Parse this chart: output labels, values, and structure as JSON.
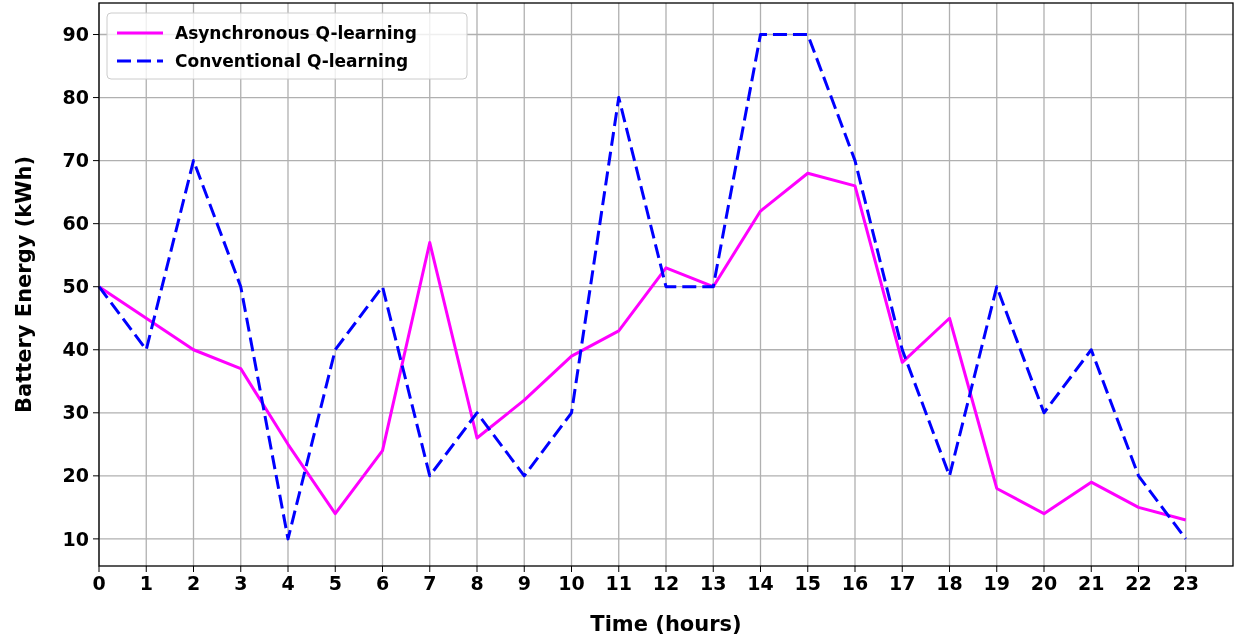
{
  "chart_data": {
    "type": "line",
    "xlabel": "Time (hours)",
    "ylabel": "Battery Energy (kWh)",
    "x": [
      0,
      1,
      2,
      3,
      4,
      5,
      6,
      7,
      8,
      9,
      10,
      11,
      12,
      13,
      14,
      15,
      16,
      17,
      18,
      19,
      20,
      21,
      22,
      23
    ],
    "series": [
      {
        "name": "Asynchronous Q-learning",
        "color": "#ff00ff",
        "line_style": "solid",
        "values": [
          50,
          45,
          40,
          37,
          25,
          14,
          24,
          57,
          26,
          32,
          39,
          43,
          53,
          50,
          62,
          68,
          66,
          38,
          45,
          18,
          14,
          19,
          15,
          13
        ]
      },
      {
        "name": "Conventional Q-learning",
        "color": "#0000ff",
        "line_style": "dashed",
        "values": [
          50,
          40,
          70,
          50,
          10,
          40,
          50,
          20,
          30,
          20,
          30,
          80,
          50,
          50,
          90,
          90,
          70,
          40,
          20,
          50,
          30,
          40,
          20,
          10
        ]
      }
    ],
    "xlim": [
      0,
      24
    ],
    "xticks": [
      0,
      1,
      2,
      3,
      4,
      5,
      6,
      7,
      8,
      9,
      10,
      11,
      12,
      13,
      14,
      15,
      16,
      17,
      18,
      19,
      20,
      21,
      22,
      23
    ],
    "ylim": [
      5.7,
      95
    ],
    "yticks": [
      10,
      20,
      30,
      40,
      50,
      60,
      70,
      80,
      90
    ],
    "grid": true,
    "legend": "top left",
    "marker": "none"
  }
}
